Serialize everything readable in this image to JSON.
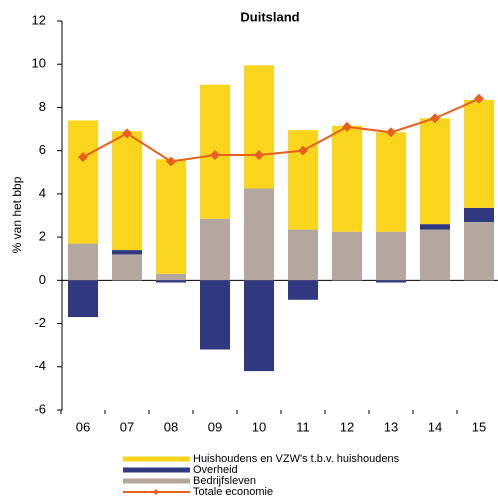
{
  "chart_data": {
    "type": "bar",
    "title": "Duitsland",
    "y_label": "% van het bbp",
    "categories": [
      "06",
      "07",
      "08",
      "09",
      "10",
      "11",
      "12",
      "13",
      "14",
      "15"
    ],
    "series": [
      {
        "name": "Huishoudens en VZW's t.b.v. huishoudens",
        "color": "#fad51e",
        "values": [
          5.7,
          5.5,
          5.3,
          6.2,
          5.7,
          4.6,
          4.9,
          4.6,
          4.9,
          5.0
        ]
      },
      {
        "name": "Overheid",
        "color": "#2f3880",
        "values": [
          -1.7,
          0.2,
          -0.1,
          -3.2,
          -4.2,
          -0.9,
          0,
          -0.1,
          0.25,
          0.65
        ]
      },
      {
        "name": "Bedrijfsleven",
        "color": "#b4a79f",
        "values": [
          1.7,
          1.2,
          0.3,
          2.85,
          4.25,
          2.35,
          2.25,
          2.25,
          2.35,
          2.7
        ]
      },
      {
        "name": "Totale economie",
        "color": "#e8601c",
        "type": "line",
        "values": [
          5.7,
          6.8,
          5.5,
          5.8,
          5.8,
          6.0,
          7.1,
          6.85,
          7.5,
          8.4
        ]
      }
    ],
    "ylim": [
      -6,
      12
    ],
    "yticks": [
      -6,
      -4,
      -2,
      0,
      2,
      4,
      6,
      8,
      10,
      12
    ],
    "grid": false
  }
}
